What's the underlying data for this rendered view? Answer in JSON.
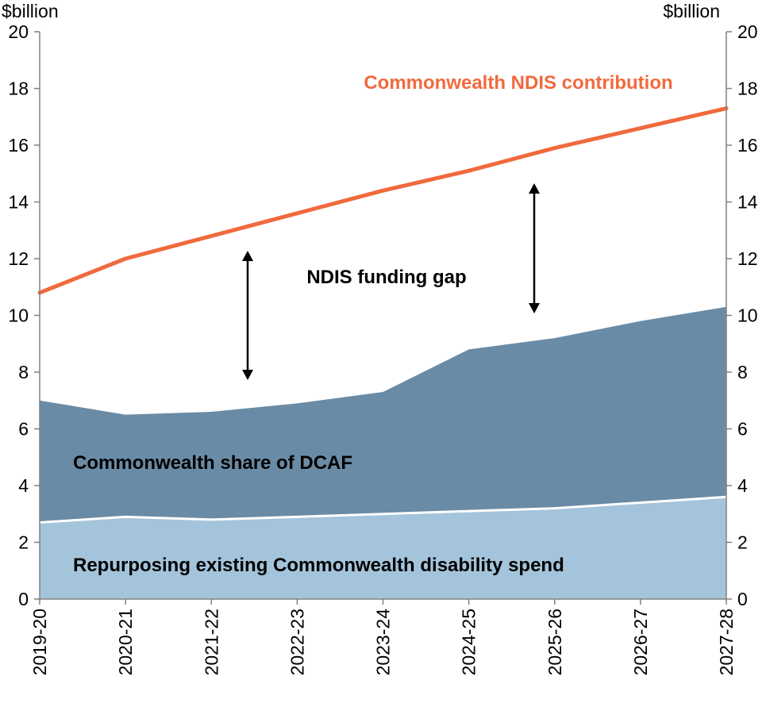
{
  "chart_data": {
    "type": "area",
    "y_unit_left": "$billion",
    "y_unit_right": "$billion",
    "categories": [
      "2019-20",
      "2020-21",
      "2021-22",
      "2022-23",
      "2023-24",
      "2024-25",
      "2025-26",
      "2026-27",
      "2027-28"
    ],
    "ylim": [
      0,
      20
    ],
    "y_ticks": [
      0,
      2,
      4,
      6,
      8,
      10,
      12,
      14,
      16,
      18,
      20
    ],
    "grid": false,
    "series": [
      {
        "name": "Repurposing existing Commonwealth disability spend",
        "kind": "stacked-area",
        "color": "#a4c4db",
        "values": [
          2.7,
          2.9,
          2.8,
          2.9,
          3.0,
          3.1,
          3.2,
          3.4,
          3.6
        ]
      },
      {
        "name": "Commonwealth share of DCAF",
        "kind": "stacked-area",
        "color": "#6a8ba5",
        "values": [
          4.3,
          3.6,
          3.8,
          4.0,
          4.3,
          5.7,
          6.0,
          6.4,
          6.7
        ]
      },
      {
        "name": "Commonwealth NDIS contribution",
        "kind": "line",
        "color": "#f06a3d",
        "values": [
          10.8,
          12.0,
          12.8,
          13.6,
          14.4,
          15.1,
          15.9,
          16.6,
          17.3
        ]
      }
    ],
    "annotations": {
      "gap_label": "NDIS funding gap"
    }
  }
}
